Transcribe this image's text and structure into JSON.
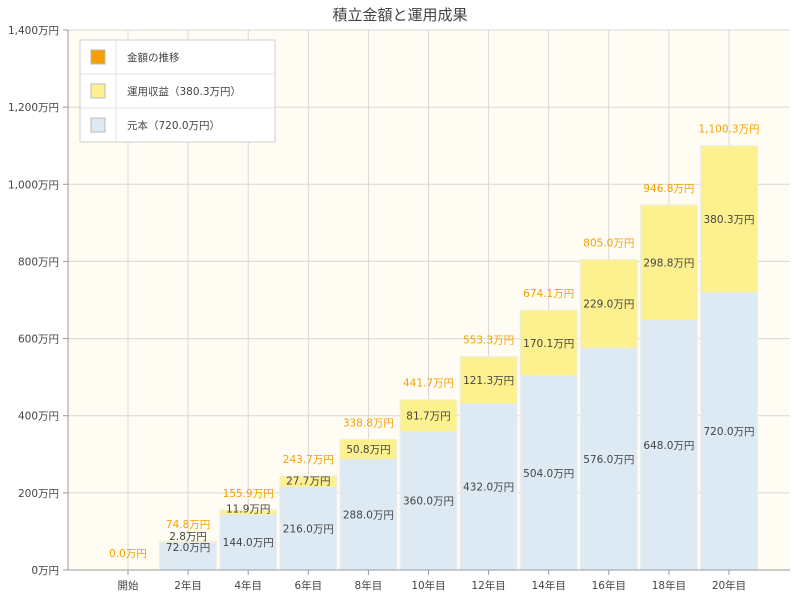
{
  "title": "積立金額と運用成果",
  "colors": {
    "principal": "#deeaf3",
    "gain": "#fdf08f",
    "total_label": "#f5a000",
    "legend_total_swatch": "#f5a000",
    "plot_bg": "#fffdf3",
    "grid": "#d7d7d7",
    "axis": "#999999",
    "text": "#444444"
  },
  "legend": {
    "items": [
      {
        "key": "total",
        "label": "金額の推移"
      },
      {
        "key": "gain",
        "label": "運用収益（380.3万円）"
      },
      {
        "key": "principal",
        "label": "元本（720.0万円）"
      }
    ]
  },
  "chart_data": {
    "type": "bar",
    "stacked": true,
    "categories": [
      "開始",
      "2年目",
      "4年目",
      "6年目",
      "8年目",
      "10年目",
      "12年目",
      "14年目",
      "16年目",
      "18年目",
      "20年目"
    ],
    "series": [
      {
        "name": "元本（720.0万円）",
        "key": "principal",
        "values": [
          0,
          72.0,
          144.0,
          216.0,
          288.0,
          360.0,
          432.0,
          504.0,
          576.0,
          648.0,
          720.0
        ]
      },
      {
        "name": "運用収益（380.3万円）",
        "key": "gain",
        "values": [
          0,
          2.8,
          11.9,
          27.7,
          50.8,
          81.7,
          121.3,
          170.1,
          229.0,
          298.8,
          380.3
        ]
      }
    ],
    "totals": [
      0.0,
      74.8,
      155.9,
      243.7,
      338.8,
      441.7,
      553.3,
      674.1,
      805.0,
      946.8,
      1100.3
    ],
    "principal_labels": [
      "",
      "72.0万円",
      "144.0万円",
      "216.0万円",
      "288.0万円",
      "360.0万円",
      "432.0万円",
      "504.0万円",
      "576.0万円",
      "648.0万円",
      "720.0万円"
    ],
    "gain_labels": [
      "",
      "2.8万円",
      "11.9万円",
      "27.7万円",
      "50.8万円",
      "81.7万円",
      "121.3万円",
      "170.1万円",
      "229.0万円",
      "298.8万円",
      "380.3万円"
    ],
    "total_labels": [
      "0.0万円",
      "74.8万円",
      "155.9万円",
      "243.7万円",
      "338.8万円",
      "441.7万円",
      "553.3万円",
      "674.1万円",
      "805.0万円",
      "946.8万円",
      "1,100.3万円"
    ],
    "y_ticks": [
      0,
      200,
      400,
      600,
      800,
      1000,
      1200,
      1400
    ],
    "y_tick_labels": [
      "0万円",
      "200万円",
      "400万円",
      "600万円",
      "800万円",
      "1,000万円",
      "1,200万円",
      "1,400万円"
    ],
    "ylim": [
      0,
      1400
    ],
    "grid": true,
    "legend_position": "top-left"
  }
}
